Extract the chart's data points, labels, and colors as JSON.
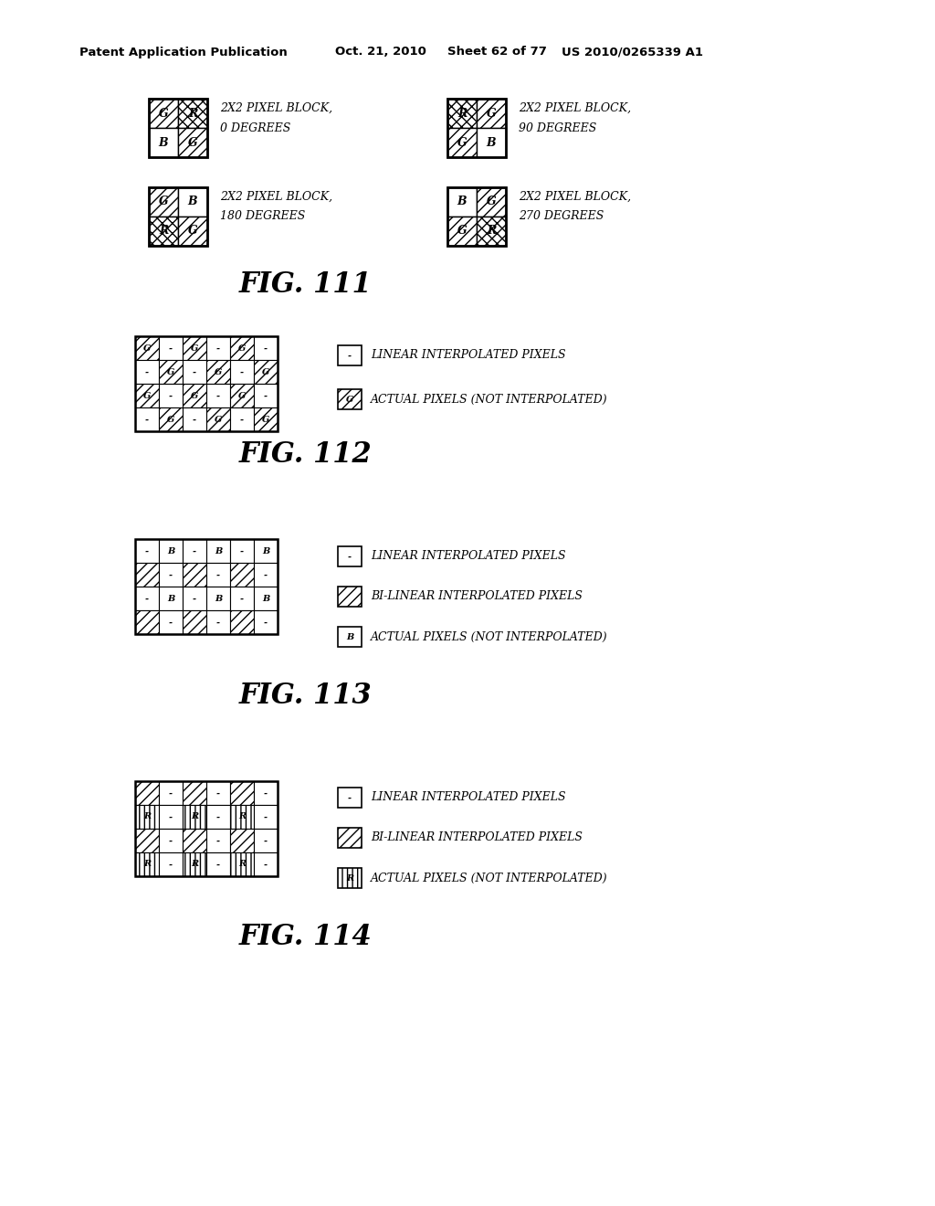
{
  "bg_color": "#ffffff",
  "header": "Patent Application Publication    Oct. 21, 2010  Sheet 62 of 77    US 2010/0265339 A1",
  "fig111_label": "FIG. 111",
  "fig112_label": "FIG. 112",
  "fig113_label": "FIG. 113",
  "fig114_label": "FIG. 114",
  "block0_label_line1": "2X2 PIXEL BLOCK,",
  "block0_label_line2": "0 DEGREES",
  "block90_label_line1": "2X2 PIXEL BLOCK,",
  "block90_label_line2": "90 DEGREES",
  "block180_label_line1": "2X2 PIXEL BLOCK,",
  "block180_label_line2": "180 DEGREES",
  "block270_label_line1": "2X2 PIXEL BLOCK,",
  "block270_label_line2": "270 DEGREES",
  "legend_linear": "LINEAR INTERPOLATED PIXELS",
  "legend_bilinear": "BI-LINEAR INTERPOLATED PIXELS",
  "legend_actual": "ACTUAL PIXELS (NOT INTERPOLATED)"
}
